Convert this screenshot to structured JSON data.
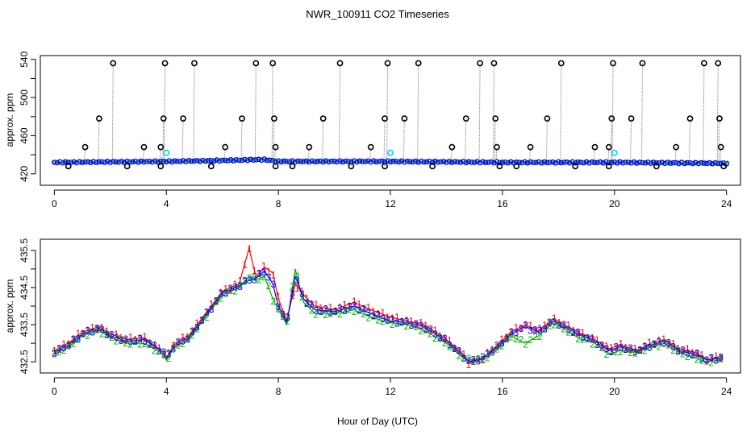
{
  "title": "NWR_100911  CO2 Timeseries",
  "xlabel": "Hour of Day (UTC)",
  "colors": {
    "gray": "#9a9a9a",
    "black": "#000000",
    "blue": "#0000ff",
    "cyan": "#22d3ee",
    "red": "#ff0000",
    "green": "#00b000"
  },
  "chart_data": [
    {
      "type": "scatter",
      "panel": "top",
      "ylabel": "approx. ppm",
      "xlim": [
        -0.5,
        24.5
      ],
      "ylim": [
        408,
        544
      ],
      "xticks": [
        0,
        4,
        8,
        12,
        16,
        20,
        24
      ],
      "xtick_labels": [
        "0",
        "4",
        "8",
        "12",
        "16",
        "20",
        "24"
      ],
      "yticks": [
        420,
        460,
        500,
        540
      ],
      "ytick_labels": [
        "420",
        "460",
        "500",
        "540"
      ],
      "yminor": [
        440,
        480,
        520
      ],
      "baseline": [
        [
          0,
          432
        ],
        [
          4,
          433
        ],
        [
          6,
          434
        ],
        [
          7.5,
          435
        ],
        [
          8,
          433
        ],
        [
          12,
          433
        ],
        [
          16,
          432
        ],
        [
          20,
          432
        ],
        [
          24,
          431
        ]
      ],
      "spikes": [
        [
          1.1,
          448
        ],
        [
          1.6,
          478
        ],
        [
          2.1,
          536
        ],
        [
          3.2,
          448
        ],
        [
          3.8,
          448
        ],
        [
          3.9,
          478
        ],
        [
          3.95,
          536
        ],
        [
          4.6,
          478
        ],
        [
          5.0,
          536
        ],
        [
          6.1,
          448
        ],
        [
          6.7,
          478
        ],
        [
          7.2,
          536
        ],
        [
          7.8,
          536
        ],
        [
          7.85,
          478
        ],
        [
          7.9,
          448
        ],
        [
          9.1,
          448
        ],
        [
          9.6,
          478
        ],
        [
          10.2,
          536
        ],
        [
          11.3,
          448
        ],
        [
          11.8,
          478
        ],
        [
          11.9,
          536
        ],
        [
          12.5,
          478
        ],
        [
          13.0,
          536
        ],
        [
          14.2,
          448
        ],
        [
          14.7,
          478
        ],
        [
          15.2,
          536
        ],
        [
          15.7,
          536
        ],
        [
          15.75,
          478
        ],
        [
          15.8,
          448
        ],
        [
          17.0,
          448
        ],
        [
          17.6,
          478
        ],
        [
          18.1,
          536
        ],
        [
          19.3,
          448
        ],
        [
          19.8,
          448
        ],
        [
          19.9,
          478
        ],
        [
          19.95,
          536
        ],
        [
          20.6,
          478
        ],
        [
          21.0,
          536
        ],
        [
          22.2,
          448
        ],
        [
          22.7,
          478
        ],
        [
          23.2,
          536
        ],
        [
          23.7,
          536
        ],
        [
          23.75,
          478
        ],
        [
          23.8,
          448
        ]
      ],
      "dips": [
        [
          0.5,
          428
        ],
        [
          2.6,
          428
        ],
        [
          3.8,
          428
        ],
        [
          5.6,
          428
        ],
        [
          7.9,
          428
        ],
        [
          8.5,
          428
        ],
        [
          10.6,
          428
        ],
        [
          11.8,
          428
        ],
        [
          13.5,
          428
        ],
        [
          15.9,
          428
        ],
        [
          16.5,
          428
        ],
        [
          18.6,
          428
        ],
        [
          19.8,
          428
        ],
        [
          21.5,
          428
        ],
        [
          23.9,
          428
        ]
      ],
      "cyan_points": [
        [
          4.0,
          442
        ],
        [
          12.0,
          442
        ],
        [
          20.0,
          442
        ]
      ]
    },
    {
      "type": "line",
      "panel": "bottom",
      "ylabel": "approx. ppm",
      "xlim": [
        -0.5,
        24.5
      ],
      "ylim": [
        432.2,
        435.8
      ],
      "xticks": [
        0,
        4,
        8,
        12,
        16,
        20,
        24
      ],
      "xtick_labels": [
        "0",
        "4",
        "8",
        "12",
        "16",
        "20",
        "24"
      ],
      "yticks": [
        432.5,
        433.5,
        434.5,
        435.5
      ],
      "ytick_labels": [
        "432.5",
        "433.5",
        "434.5",
        "435.5"
      ],
      "yminor": [
        433.0,
        434.0,
        435.0
      ],
      "series": [
        {
          "name": "1",
          "color": "#ff0000",
          "points": [
            [
              0,
              432.8
            ],
            [
              0.5,
              433.0
            ],
            [
              1.0,
              433.3
            ],
            [
              1.6,
              433.45
            ],
            [
              2.0,
              433.25
            ],
            [
              2.6,
              433.1
            ],
            [
              3.2,
              433.15
            ],
            [
              3.9,
              432.75
            ],
            [
              4.0,
              432.6
            ],
            [
              4.3,
              433.0
            ],
            [
              4.8,
              433.2
            ],
            [
              5.2,
              433.6
            ],
            [
              5.6,
              434.0
            ],
            [
              6.0,
              434.4
            ],
            [
              6.6,
              434.6
            ],
            [
              6.95,
              435.55
            ],
            [
              7.2,
              434.8
            ],
            [
              7.5,
              435.05
            ],
            [
              7.8,
              434.9
            ],
            [
              8.0,
              434.2
            ],
            [
              8.3,
              433.6
            ],
            [
              8.6,
              434.6
            ],
            [
              8.9,
              434.3
            ],
            [
              9.3,
              434.0
            ],
            [
              10.0,
              433.9
            ],
            [
              10.7,
              434.1
            ],
            [
              11.3,
              433.9
            ],
            [
              12.0,
              433.7
            ],
            [
              12.6,
              433.6
            ],
            [
              13.2,
              433.5
            ],
            [
              14.0,
              433.1
            ],
            [
              14.6,
              432.7
            ],
            [
              14.8,
              432.45
            ],
            [
              15.3,
              432.6
            ],
            [
              15.9,
              433.0
            ],
            [
              16.3,
              433.3
            ],
            [
              16.8,
              433.5
            ],
            [
              17.3,
              433.35
            ],
            [
              17.8,
              433.65
            ],
            [
              18.2,
              433.5
            ],
            [
              18.7,
              433.3
            ],
            [
              19.3,
              433.1
            ],
            [
              19.8,
              432.85
            ],
            [
              20.2,
              432.95
            ],
            [
              20.8,
              432.8
            ],
            [
              21.3,
              433.0
            ],
            [
              21.8,
              433.1
            ],
            [
              22.3,
              432.85
            ],
            [
              22.9,
              432.75
            ],
            [
              23.3,
              432.55
            ],
            [
              23.8,
              432.65
            ]
          ]
        },
        {
          "name": "2",
          "color": "#00b000",
          "points": [
            [
              0,
              432.7
            ],
            [
              0.5,
              432.9
            ],
            [
              1.0,
              433.2
            ],
            [
              1.6,
              433.35
            ],
            [
              2.0,
              433.15
            ],
            [
              2.6,
              433.0
            ],
            [
              3.2,
              433.0
            ],
            [
              3.9,
              432.7
            ],
            [
              4.0,
              432.55
            ],
            [
              4.3,
              432.9
            ],
            [
              4.8,
              433.1
            ],
            [
              5.2,
              433.5
            ],
            [
              5.6,
              433.9
            ],
            [
              6.0,
              434.3
            ],
            [
              6.6,
              434.5
            ],
            [
              6.95,
              434.8
            ],
            [
              7.2,
              434.7
            ],
            [
              7.5,
              434.8
            ],
            [
              7.8,
              434.2
            ],
            [
              8.0,
              433.9
            ],
            [
              8.3,
              433.5
            ],
            [
              8.6,
              435.0
            ],
            [
              8.9,
              434.1
            ],
            [
              9.3,
              433.8
            ],
            [
              10.0,
              433.8
            ],
            [
              10.7,
              433.9
            ],
            [
              11.3,
              433.7
            ],
            [
              12.0,
              433.55
            ],
            [
              12.6,
              433.5
            ],
            [
              13.2,
              433.35
            ],
            [
              14.0,
              433.0
            ],
            [
              14.6,
              432.6
            ],
            [
              14.8,
              432.55
            ],
            [
              15.3,
              432.55
            ],
            [
              15.9,
              432.9
            ],
            [
              16.3,
              433.2
            ],
            [
              16.8,
              433.0
            ],
            [
              17.3,
              433.2
            ],
            [
              17.8,
              433.55
            ],
            [
              18.2,
              433.4
            ],
            [
              18.7,
              433.15
            ],
            [
              19.3,
              433.0
            ],
            [
              19.8,
              432.7
            ],
            [
              20.2,
              432.8
            ],
            [
              20.8,
              432.75
            ],
            [
              21.3,
              432.9
            ],
            [
              21.8,
              433.0
            ],
            [
              22.3,
              432.75
            ],
            [
              22.9,
              432.6
            ],
            [
              23.3,
              432.5
            ],
            [
              23.8,
              432.55
            ]
          ]
        },
        {
          "name": "3",
          "color": "#0000ff",
          "points": [
            [
              0,
              432.75
            ],
            [
              0.5,
              432.95
            ],
            [
              1.0,
              433.25
            ],
            [
              1.6,
              433.4
            ],
            [
              2.0,
              433.2
            ],
            [
              2.6,
              433.05
            ],
            [
              3.2,
              433.1
            ],
            [
              3.9,
              432.75
            ],
            [
              4.0,
              432.6
            ],
            [
              4.3,
              432.95
            ],
            [
              4.8,
              433.15
            ],
            [
              5.2,
              433.55
            ],
            [
              5.6,
              433.95
            ],
            [
              6.0,
              434.35
            ],
            [
              6.6,
              434.55
            ],
            [
              6.95,
              434.7
            ],
            [
              7.2,
              434.75
            ],
            [
              7.5,
              434.95
            ],
            [
              7.8,
              434.6
            ],
            [
              8.0,
              434.0
            ],
            [
              8.3,
              433.55
            ],
            [
              8.6,
              434.8
            ],
            [
              8.9,
              434.2
            ],
            [
              9.3,
              433.9
            ],
            [
              10.0,
              433.85
            ],
            [
              10.7,
              434.0
            ],
            [
              11.3,
              433.8
            ],
            [
              12.0,
              433.6
            ],
            [
              12.6,
              433.55
            ],
            [
              13.2,
              433.45
            ],
            [
              14.0,
              433.05
            ],
            [
              14.6,
              432.65
            ],
            [
              14.8,
              432.5
            ],
            [
              15.3,
              432.6
            ],
            [
              15.9,
              432.95
            ],
            [
              16.3,
              433.25
            ],
            [
              16.8,
              433.45
            ],
            [
              17.3,
              433.3
            ],
            [
              17.8,
              433.6
            ],
            [
              18.2,
              433.45
            ],
            [
              18.7,
              433.25
            ],
            [
              19.3,
              433.05
            ],
            [
              19.8,
              432.8
            ],
            [
              20.2,
              432.9
            ],
            [
              20.8,
              432.78
            ],
            [
              21.3,
              432.95
            ],
            [
              21.8,
              433.05
            ],
            [
              22.3,
              432.8
            ],
            [
              22.9,
              432.7
            ],
            [
              23.3,
              432.55
            ],
            [
              23.8,
              432.6
            ]
          ]
        }
      ]
    }
  ]
}
